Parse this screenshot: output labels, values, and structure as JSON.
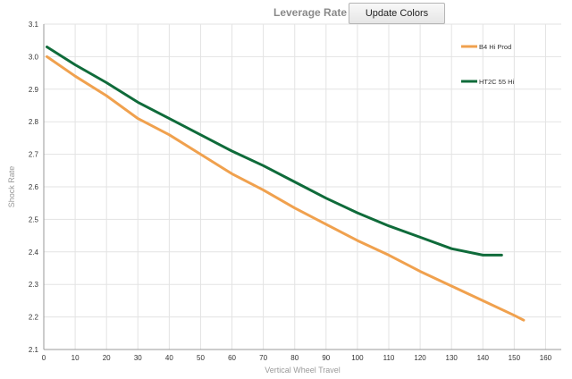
{
  "header": {
    "title": "Leverage Rate",
    "update_button_label": "Update Colors"
  },
  "colors": {
    "series_1": "#f0a14e",
    "series_2": "#0f6b3a",
    "grid": "#e3e3e3",
    "axis": "#999999",
    "tick_text": "#333333",
    "axis_title": "#9a9a9a"
  },
  "chart_data": {
    "type": "line",
    "title": "Leverage Rate",
    "xlabel": "Vertical Wheel Travel",
    "ylabel": "Shock Rate",
    "xlim": [
      0,
      165
    ],
    "ylim": [
      2.1,
      3.1
    ],
    "x_ticks": [
      0,
      10,
      20,
      30,
      40,
      50,
      60,
      70,
      80,
      90,
      100,
      110,
      120,
      130,
      140,
      150,
      160
    ],
    "y_ticks": [
      2.1,
      2.2,
      2.3,
      2.4,
      2.5,
      2.6,
      2.7,
      2.8,
      2.9,
      3.0,
      3.1
    ],
    "grid": true,
    "legend_position": "right",
    "series": [
      {
        "name": "B4 Hi Prod",
        "x": [
          1,
          10,
          20,
          30,
          40,
          50,
          60,
          70,
          80,
          90,
          100,
          110,
          120,
          130,
          140,
          150,
          153
        ],
        "y": [
          3.0,
          2.94,
          2.88,
          2.81,
          2.76,
          2.7,
          2.64,
          2.59,
          2.535,
          2.485,
          2.435,
          2.39,
          2.34,
          2.295,
          2.25,
          2.205,
          2.19
        ]
      },
      {
        "name": "HT2C 55 Hi",
        "x": [
          1,
          10,
          20,
          30,
          40,
          50,
          60,
          70,
          80,
          90,
          100,
          110,
          120,
          130,
          140,
          146
        ],
        "y": [
          3.03,
          2.975,
          2.92,
          2.86,
          2.81,
          2.76,
          2.71,
          2.665,
          2.615,
          2.565,
          2.52,
          2.48,
          2.445,
          2.41,
          2.39,
          2.39
        ]
      }
    ]
  }
}
